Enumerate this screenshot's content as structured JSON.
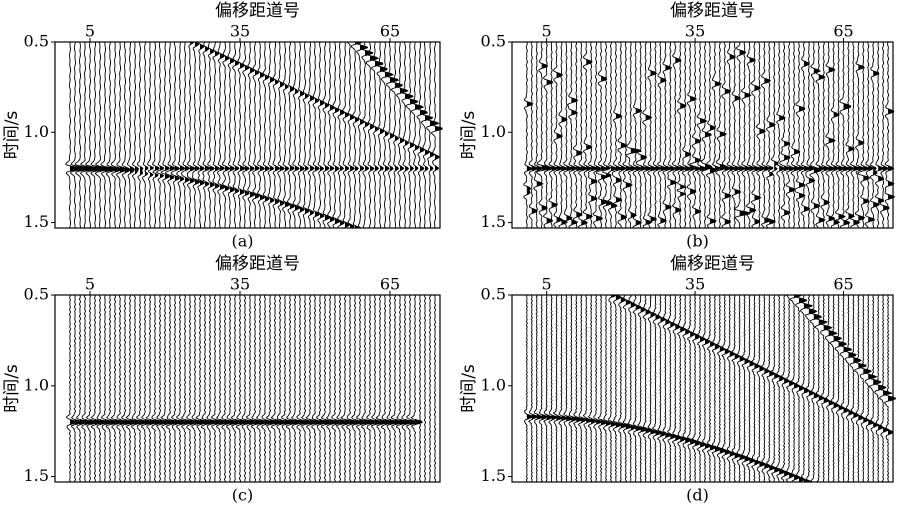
{
  "chart_data": [
    {
      "type": "wiggle",
      "title": "偏移距道号",
      "ylabel": "时间/s",
      "caption": "(a)",
      "xlim": [
        -2,
        75
      ],
      "xticks": [
        5,
        35,
        65
      ],
      "ylim": [
        0.5,
        1.53
      ],
      "yticks": [
        0.5,
        {
          "value": 1,
          "label": "1.0"
        },
        1.5
      ]
    },
    {
      "type": "wiggle",
      "title": "偏移距道号",
      "ylabel": "时间/s",
      "caption": "(b)",
      "xlim": [
        -2,
        75
      ],
      "xticks": [
        5,
        35,
        65
      ],
      "ylim": [
        0.5,
        1.53
      ],
      "yticks": [
        0.5,
        {
          "value": 1,
          "label": "1.0"
        },
        1.5
      ]
    },
    {
      "type": "wiggle",
      "title": "偏移距道号",
      "ylabel": "时间/s",
      "caption": "(c)",
      "xlim": [
        -2,
        75
      ],
      "xticks": [
        5,
        35,
        65
      ],
      "ylim": [
        0.5,
        1.53
      ],
      "yticks": [
        0.5,
        {
          "value": 1,
          "label": "1.0"
        },
        1.5
      ]
    },
    {
      "type": "wiggle",
      "title": "偏移距道号",
      "ylabel": "时间/s",
      "caption": "(d)",
      "xlim": [
        -2,
        75
      ],
      "xticks": [
        5,
        35,
        65
      ],
      "ylim": [
        0.5,
        1.53
      ],
      "yticks": [
        0.5,
        {
          "value": 1,
          "label": "1.0"
        },
        1.5
      ]
    }
  ]
}
